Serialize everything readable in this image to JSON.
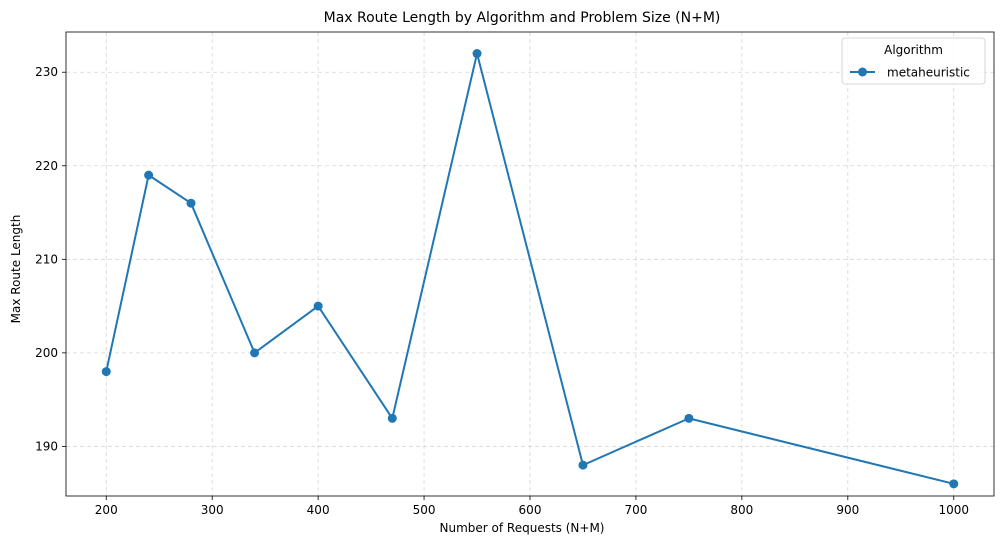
{
  "chart_data": {
    "type": "line",
    "title": "Max Route Length by Algorithm and Problem Size (N+M)",
    "xlabel": "Number of Requests (N+M)",
    "ylabel": "Max Route Length",
    "xlim": [
      162,
      1038
    ],
    "ylim": [
      184.7,
      234.3
    ],
    "xticks": [
      200,
      300,
      400,
      500,
      600,
      700,
      800,
      900,
      1000
    ],
    "yticks": [
      190,
      200,
      210,
      220,
      230
    ],
    "grid": true,
    "legend": {
      "title": "Algorithm",
      "placement": "top-right"
    },
    "series": [
      {
        "name": "metaheuristic",
        "color": "#1f77b4",
        "x": [
          200,
          240,
          280,
          340,
          400,
          470,
          550,
          650,
          750,
          1000
        ],
        "y": [
          198,
          219,
          216,
          200,
          205,
          193,
          232,
          188,
          193,
          186
        ]
      }
    ]
  }
}
